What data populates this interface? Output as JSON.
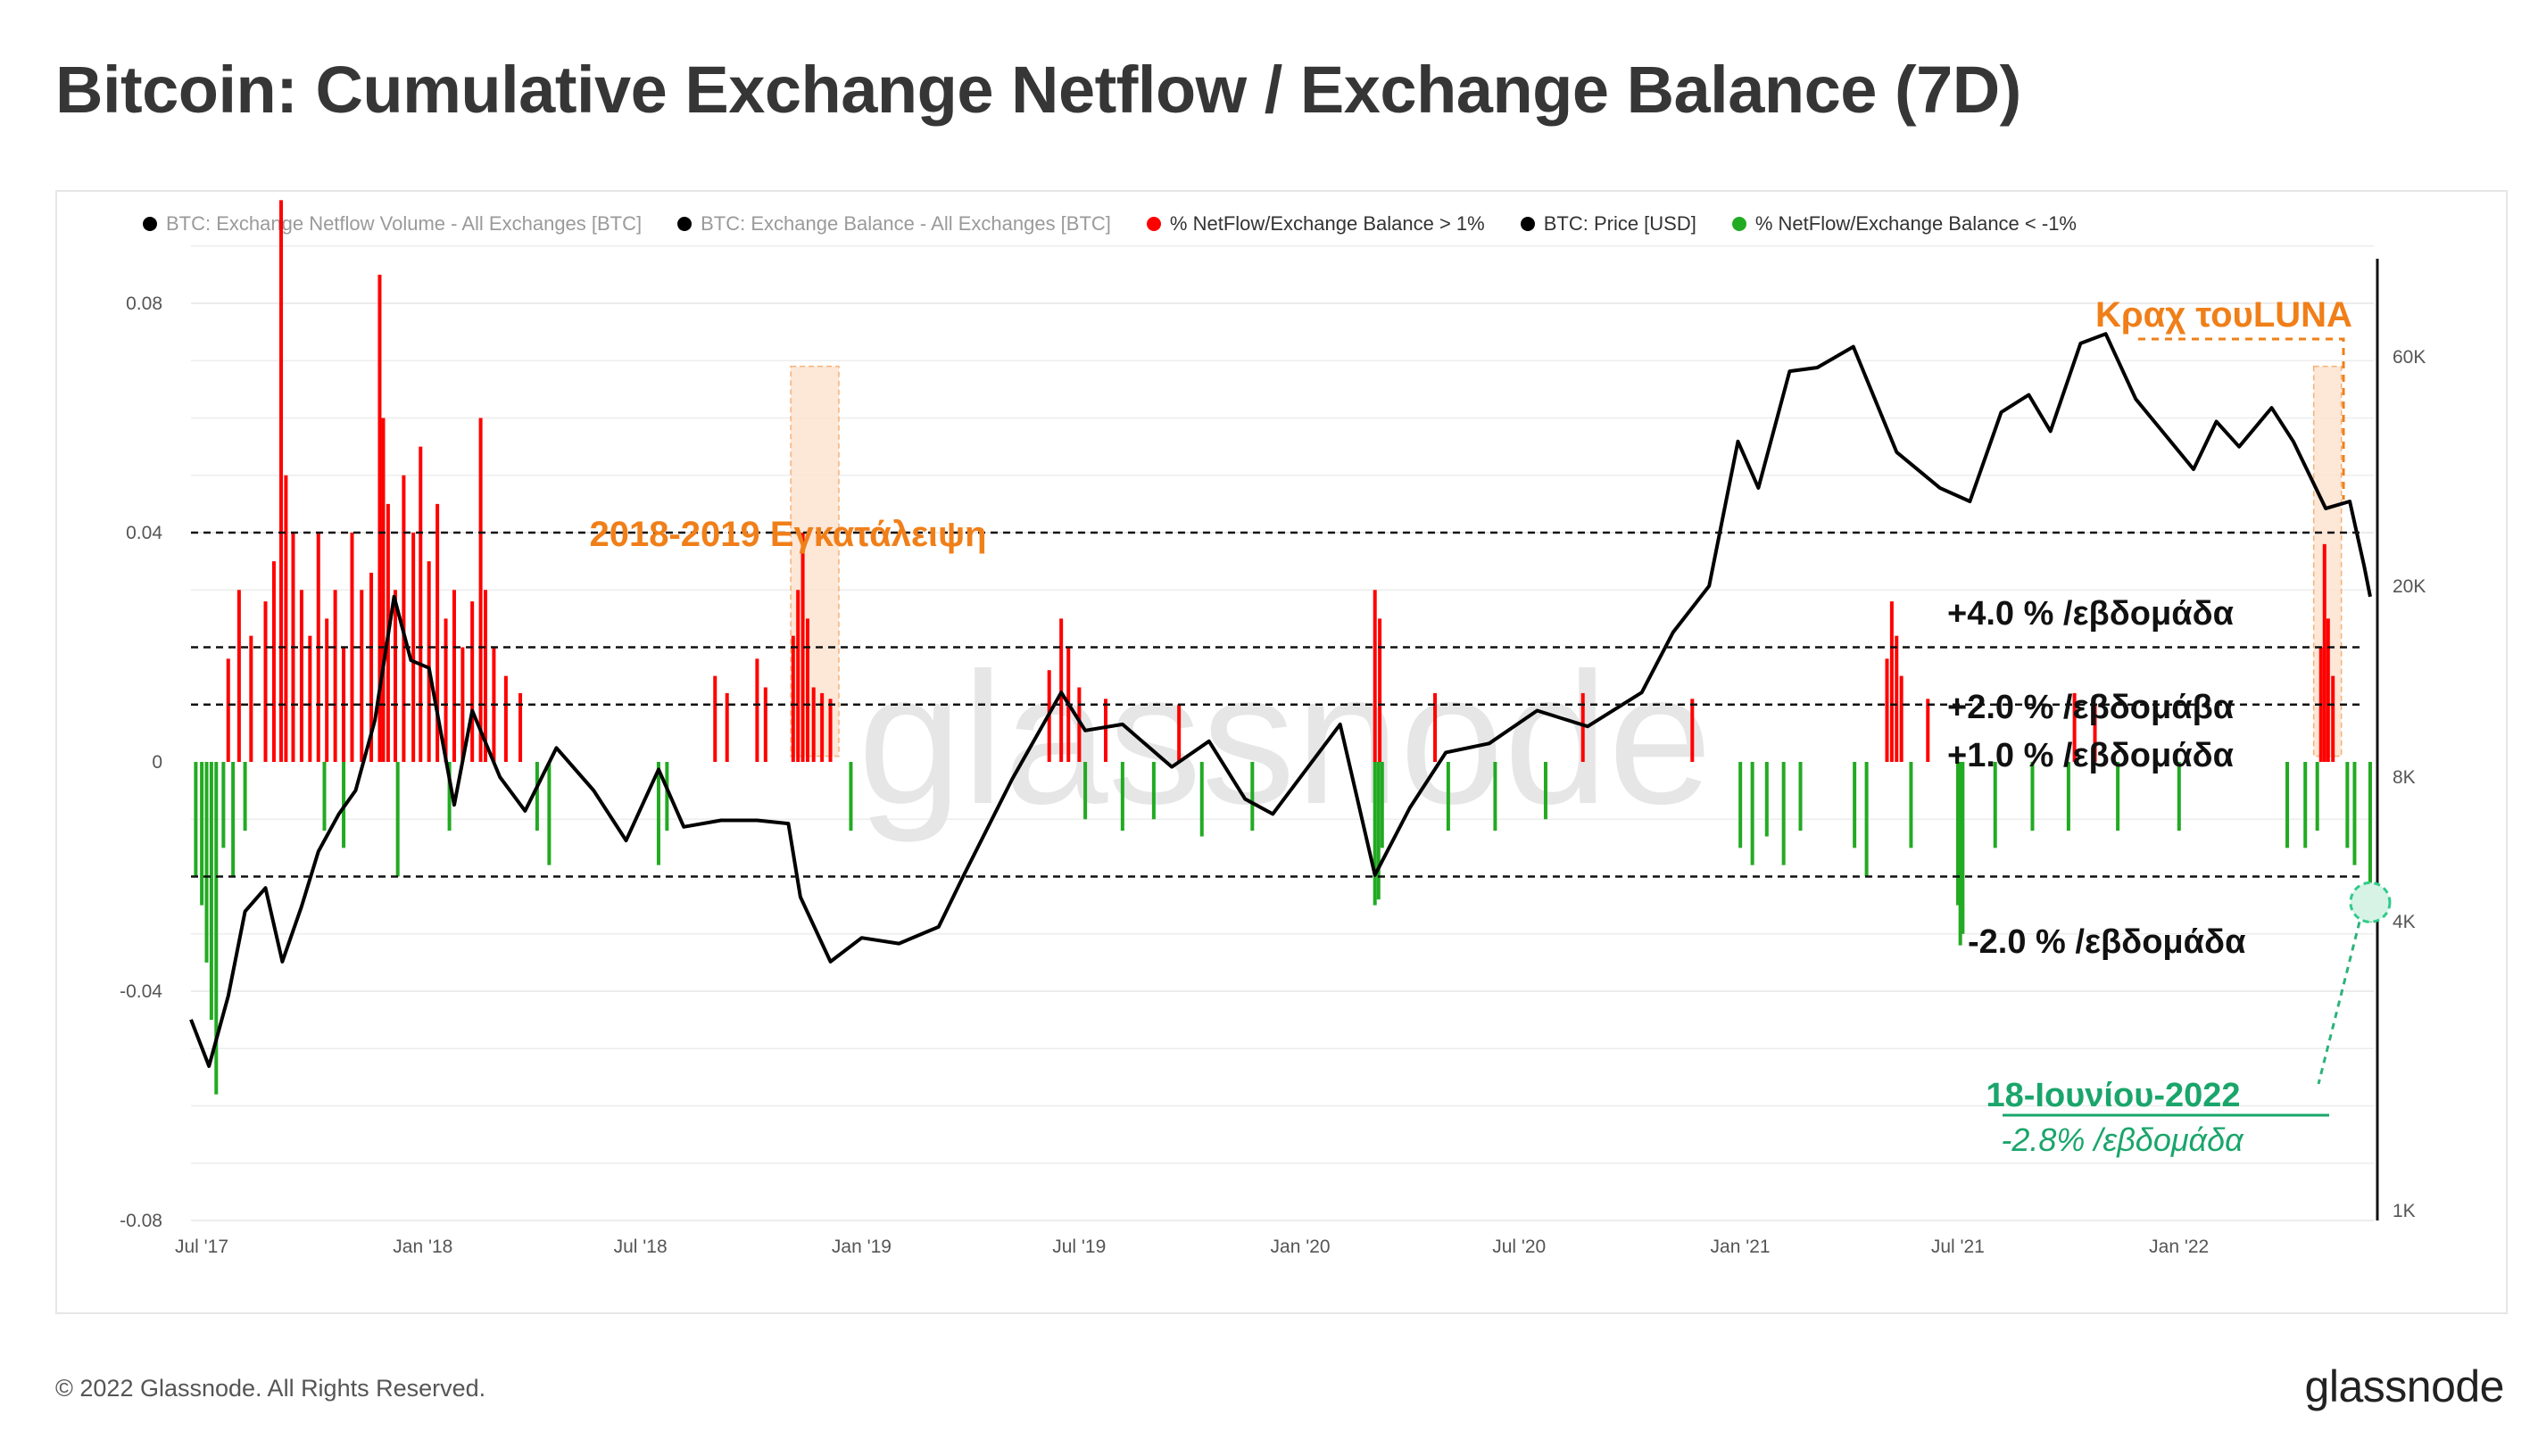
{
  "title": "Bitcoin: Cumulative Exchange Netflow / Exchange Balance (7D)",
  "legend": [
    {
      "label": "BTC: Exchange Netflow Volume - All Exchanges [BTC]",
      "color": "#000000",
      "faded": true
    },
    {
      "label": "BTC: Exchange Balance - All Exchanges [BTC]",
      "color": "#000000",
      "faded": true
    },
    {
      "label": "% NetFlow/Exchange Balance > 1%",
      "color": "#ff0000",
      "faded": false
    },
    {
      "label": "BTC: Price [USD]",
      "color": "#000000",
      "faded": false
    },
    {
      "label": "% NetFlow/Exchange Balance < -1%",
      "color": "#22aa22",
      "faded": false
    }
  ],
  "watermark": "glassnode",
  "footer": {
    "copyright": "© 2022 Glassnode. All Rights Reserved.",
    "logo": "glassnode"
  },
  "chart_data": {
    "type": "bar",
    "x_range": [
      "2017-07-01",
      "2022-06-21"
    ],
    "x_tick_labels": [
      "Jul '17",
      "Jan '18",
      "Jul '18",
      "Jan '19",
      "Jul '19",
      "Jan '20",
      "Jul '20",
      "Jan '21",
      "Jul '21",
      "Jan '22"
    ],
    "y_left": {
      "ticks": [
        0.08,
        0.04,
        0,
        -0.04,
        -0.08
      ],
      "tick_labels": [
        "0.08",
        "0.04",
        "0",
        "-0.04",
        "-0.08"
      ],
      "range": [
        -0.08,
        0.08
      ]
    },
    "y_right": {
      "scale": "log",
      "ticks": [
        60000,
        20000,
        8000,
        4000,
        1000
      ],
      "tick_labels": [
        "60K",
        "20K",
        "8K",
        "4K",
        "1K"
      ]
    },
    "reference_lines": [
      {
        "value": 0.04,
        "label": "+4.0 % /εβδομάδα"
      },
      {
        "value": 0.02,
        "label": "+2.0 % /εβδομάβα"
      },
      {
        "value": 0.01,
        "label": "+1.0 % /εβδομάδα"
      },
      {
        "value": -0.02,
        "label": "-2.0 % /εβδομάδα"
      }
    ],
    "annotations": {
      "capitulation": {
        "label": "2018-2019  Εγκατάλειψη",
        "from": "2018-11-12",
        "to": "2018-12-22"
      },
      "luna": {
        "label": "Κραχ τουLUNA",
        "from": "2022-05-02",
        "to": "2022-05-25"
      },
      "june18_date": "18-Ιουνίου-2022",
      "june18_value": "-2.8% /εβδομάδα"
    },
    "series": [
      {
        "name": "% NetFlow/Exchange Balance > 1%",
        "color": "#ff0000",
        "points": [
          [
            "2017-08-01",
            0.018
          ],
          [
            "2017-08-10",
            0.03
          ],
          [
            "2017-08-20",
            0.022
          ],
          [
            "2017-09-01",
            0.028
          ],
          [
            "2017-09-08",
            0.035
          ],
          [
            "2017-09-14",
            0.098
          ],
          [
            "2017-09-18",
            0.05
          ],
          [
            "2017-09-24",
            0.04
          ],
          [
            "2017-10-01",
            0.03
          ],
          [
            "2017-10-08",
            0.022
          ],
          [
            "2017-10-15",
            0.04
          ],
          [
            "2017-10-22",
            0.025
          ],
          [
            "2017-10-29",
            0.03
          ],
          [
            "2017-11-05",
            0.02
          ],
          [
            "2017-11-12",
            0.04
          ],
          [
            "2017-11-20",
            0.03
          ],
          [
            "2017-11-28",
            0.033
          ],
          [
            "2017-12-05",
            0.085
          ],
          [
            "2017-12-08",
            0.06
          ],
          [
            "2017-12-12",
            0.045
          ],
          [
            "2017-12-18",
            0.03
          ],
          [
            "2017-12-25",
            0.05
          ],
          [
            "2018-01-02",
            0.04
          ],
          [
            "2018-01-08",
            0.055
          ],
          [
            "2018-01-15",
            0.035
          ],
          [
            "2018-01-22",
            0.045
          ],
          [
            "2018-01-29",
            0.025
          ],
          [
            "2018-02-05",
            0.03
          ],
          [
            "2018-02-12",
            0.02
          ],
          [
            "2018-02-20",
            0.028
          ],
          [
            "2018-02-27",
            0.06
          ],
          [
            "2018-03-03",
            0.03
          ],
          [
            "2018-03-10",
            0.02
          ],
          [
            "2018-03-20",
            0.015
          ],
          [
            "2018-04-01",
            0.012
          ],
          [
            "2018-09-10",
            0.015
          ],
          [
            "2018-09-20",
            0.012
          ],
          [
            "2018-10-15",
            0.018
          ],
          [
            "2018-10-22",
            0.013
          ],
          [
            "2018-11-14",
            0.022
          ],
          [
            "2018-11-18",
            0.03
          ],
          [
            "2018-11-22",
            0.04
          ],
          [
            "2018-11-26",
            0.025
          ],
          [
            "2018-12-01",
            0.013
          ],
          [
            "2018-12-08",
            0.012
          ],
          [
            "2018-12-15",
            0.011
          ],
          [
            "2019-06-15",
            0.016
          ],
          [
            "2019-06-25",
            0.025
          ],
          [
            "2019-07-01",
            0.02
          ],
          [
            "2019-07-10",
            0.013
          ],
          [
            "2019-08-01",
            0.011
          ],
          [
            "2019-10-01",
            0.01
          ],
          [
            "2020-03-12",
            0.03
          ],
          [
            "2020-03-16",
            0.025
          ],
          [
            "2020-05-01",
            0.012
          ],
          [
            "2020-09-01",
            0.012
          ],
          [
            "2020-12-01",
            0.011
          ],
          [
            "2021-05-12",
            0.018
          ],
          [
            "2021-05-16",
            0.028
          ],
          [
            "2021-05-20",
            0.022
          ],
          [
            "2021-05-24",
            0.015
          ],
          [
            "2021-06-15",
            0.011
          ],
          [
            "2021-10-15",
            0.012
          ],
          [
            "2021-11-01",
            0.01
          ],
          [
            "2022-05-08",
            0.02
          ],
          [
            "2022-05-11",
            0.038
          ],
          [
            "2022-05-14",
            0.025
          ],
          [
            "2022-05-18",
            0.015
          ]
        ]
      },
      {
        "name": "% NetFlow/Exchange Balance < -1%",
        "color": "#22aa22",
        "points": [
          [
            "2017-07-05",
            -0.02
          ],
          [
            "2017-07-10",
            -0.025
          ],
          [
            "2017-07-14",
            -0.035
          ],
          [
            "2017-07-18",
            -0.045
          ],
          [
            "2017-07-22",
            -0.058
          ],
          [
            "2017-07-28",
            -0.015
          ],
          [
            "2017-08-05",
            -0.02
          ],
          [
            "2017-08-15",
            -0.012
          ],
          [
            "2017-10-20",
            -0.012
          ],
          [
            "2017-11-05",
            -0.015
          ],
          [
            "2017-12-20",
            -0.02
          ],
          [
            "2018-02-01",
            -0.012
          ],
          [
            "2018-04-15",
            -0.012
          ],
          [
            "2018-04-25",
            -0.018
          ],
          [
            "2018-07-25",
            -0.018
          ],
          [
            "2018-08-01",
            -0.012
          ],
          [
            "2019-01-01",
            -0.012
          ],
          [
            "2019-07-15",
            -0.01
          ],
          [
            "2019-08-15",
            -0.012
          ],
          [
            "2019-09-10",
            -0.01
          ],
          [
            "2019-10-20",
            -0.013
          ],
          [
            "2019-12-01",
            -0.012
          ],
          [
            "2020-03-12",
            -0.025
          ],
          [
            "2020-03-15",
            -0.024
          ],
          [
            "2020-03-18",
            -0.015
          ],
          [
            "2020-05-12",
            -0.012
          ],
          [
            "2020-06-20",
            -0.012
          ],
          [
            "2020-08-01",
            -0.01
          ],
          [
            "2021-01-10",
            -0.015
          ],
          [
            "2021-01-20",
            -0.018
          ],
          [
            "2021-02-01",
            -0.013
          ],
          [
            "2021-02-15",
            -0.018
          ],
          [
            "2021-03-01",
            -0.012
          ],
          [
            "2021-04-15",
            -0.015
          ],
          [
            "2021-04-25",
            -0.02
          ],
          [
            "2021-06-01",
            -0.015
          ],
          [
            "2021-07-10",
            -0.025
          ],
          [
            "2021-07-12",
            -0.032
          ],
          [
            "2021-07-14",
            -0.03
          ],
          [
            "2021-08-10",
            -0.015
          ],
          [
            "2021-09-10",
            -0.012
          ],
          [
            "2021-10-10",
            -0.012
          ],
          [
            "2021-11-20",
            -0.012
          ],
          [
            "2022-01-10",
            -0.012
          ],
          [
            "2022-04-10",
            -0.015
          ],
          [
            "2022-04-25",
            -0.015
          ],
          [
            "2022-05-05",
            -0.012
          ],
          [
            "2022-05-30",
            -0.015
          ],
          [
            "2022-06-05",
            -0.018
          ],
          [
            "2022-06-18",
            -0.028
          ]
        ]
      },
      {
        "name": "BTC: Price [USD]",
        "color": "#000000",
        "axis": "right",
        "points": [
          [
            "2017-07-01",
            2500
          ],
          [
            "2017-07-16",
            2000
          ],
          [
            "2017-08-01",
            2800
          ],
          [
            "2017-08-15",
            4200
          ],
          [
            "2017-09-01",
            4700
          ],
          [
            "2017-09-15",
            3300
          ],
          [
            "2017-10-01",
            4300
          ],
          [
            "2017-10-15",
            5600
          ],
          [
            "2017-11-01",
            6700
          ],
          [
            "2017-11-15",
            7500
          ],
          [
            "2017-12-01",
            10500
          ],
          [
            "2017-12-17",
            19000
          ],
          [
            "2017-12-31",
            14000
          ],
          [
            "2018-01-15",
            13500
          ],
          [
            "2018-02-05",
            7000
          ],
          [
            "2018-02-20",
            11000
          ],
          [
            "2018-03-15",
            8000
          ],
          [
            "2018-04-05",
            6800
          ],
          [
            "2018-05-01",
            9200
          ],
          [
            "2018-06-01",
            7500
          ],
          [
            "2018-06-28",
            5900
          ],
          [
            "2018-07-25",
            8300
          ],
          [
            "2018-08-15",
            6300
          ],
          [
            "2018-09-15",
            6500
          ],
          [
            "2018-10-15",
            6500
          ],
          [
            "2018-11-10",
            6400
          ],
          [
            "2018-11-20",
            4500
          ],
          [
            "2018-12-15",
            3300
          ],
          [
            "2019-01-10",
            3700
          ],
          [
            "2019-02-10",
            3600
          ],
          [
            "2019-03-15",
            3900
          ],
          [
            "2019-04-05",
            5000
          ],
          [
            "2019-05-15",
            7900
          ],
          [
            "2019-06-25",
            12000
          ],
          [
            "2019-07-15",
            10000
          ],
          [
            "2019-08-15",
            10300
          ],
          [
            "2019-09-25",
            8400
          ],
          [
            "2019-10-26",
            9500
          ],
          [
            "2019-11-25",
            7200
          ],
          [
            "2019-12-18",
            6700
          ],
          [
            "2020-02-12",
            10300
          ],
          [
            "2020-03-12",
            5000
          ],
          [
            "2020-04-10",
            6900
          ],
          [
            "2020-05-10",
            9000
          ],
          [
            "2020-06-15",
            9400
          ],
          [
            "2020-07-25",
            11000
          ],
          [
            "2020-09-05",
            10200
          ],
          [
            "2020-10-20",
            12000
          ],
          [
            "2020-11-15",
            16000
          ],
          [
            "2020-12-15",
            20000
          ],
          [
            "2021-01-08",
            40000
          ],
          [
            "2021-01-25",
            32000
          ],
          [
            "2021-02-20",
            56000
          ],
          [
            "2021-03-15",
            57000
          ],
          [
            "2021-04-14",
            63000
          ],
          [
            "2021-05-20",
            38000
          ],
          [
            "2021-06-25",
            32000
          ],
          [
            "2021-07-20",
            30000
          ],
          [
            "2021-08-15",
            46000
          ],
          [
            "2021-09-07",
            50000
          ],
          [
            "2021-09-25",
            42000
          ],
          [
            "2021-10-20",
            64000
          ],
          [
            "2021-11-10",
            67000
          ],
          [
            "2021-12-05",
            49000
          ],
          [
            "2022-01-22",
            35000
          ],
          [
            "2022-02-10",
            44000
          ],
          [
            "2022-03-01",
            39000
          ],
          [
            "2022-03-28",
            47000
          ],
          [
            "2022-04-15",
            40000
          ],
          [
            "2022-05-12",
            29000
          ],
          [
            "2022-06-01",
            30000
          ],
          [
            "2022-06-13",
            22000
          ],
          [
            "2022-06-18",
            19000
          ]
        ]
      }
    ]
  }
}
